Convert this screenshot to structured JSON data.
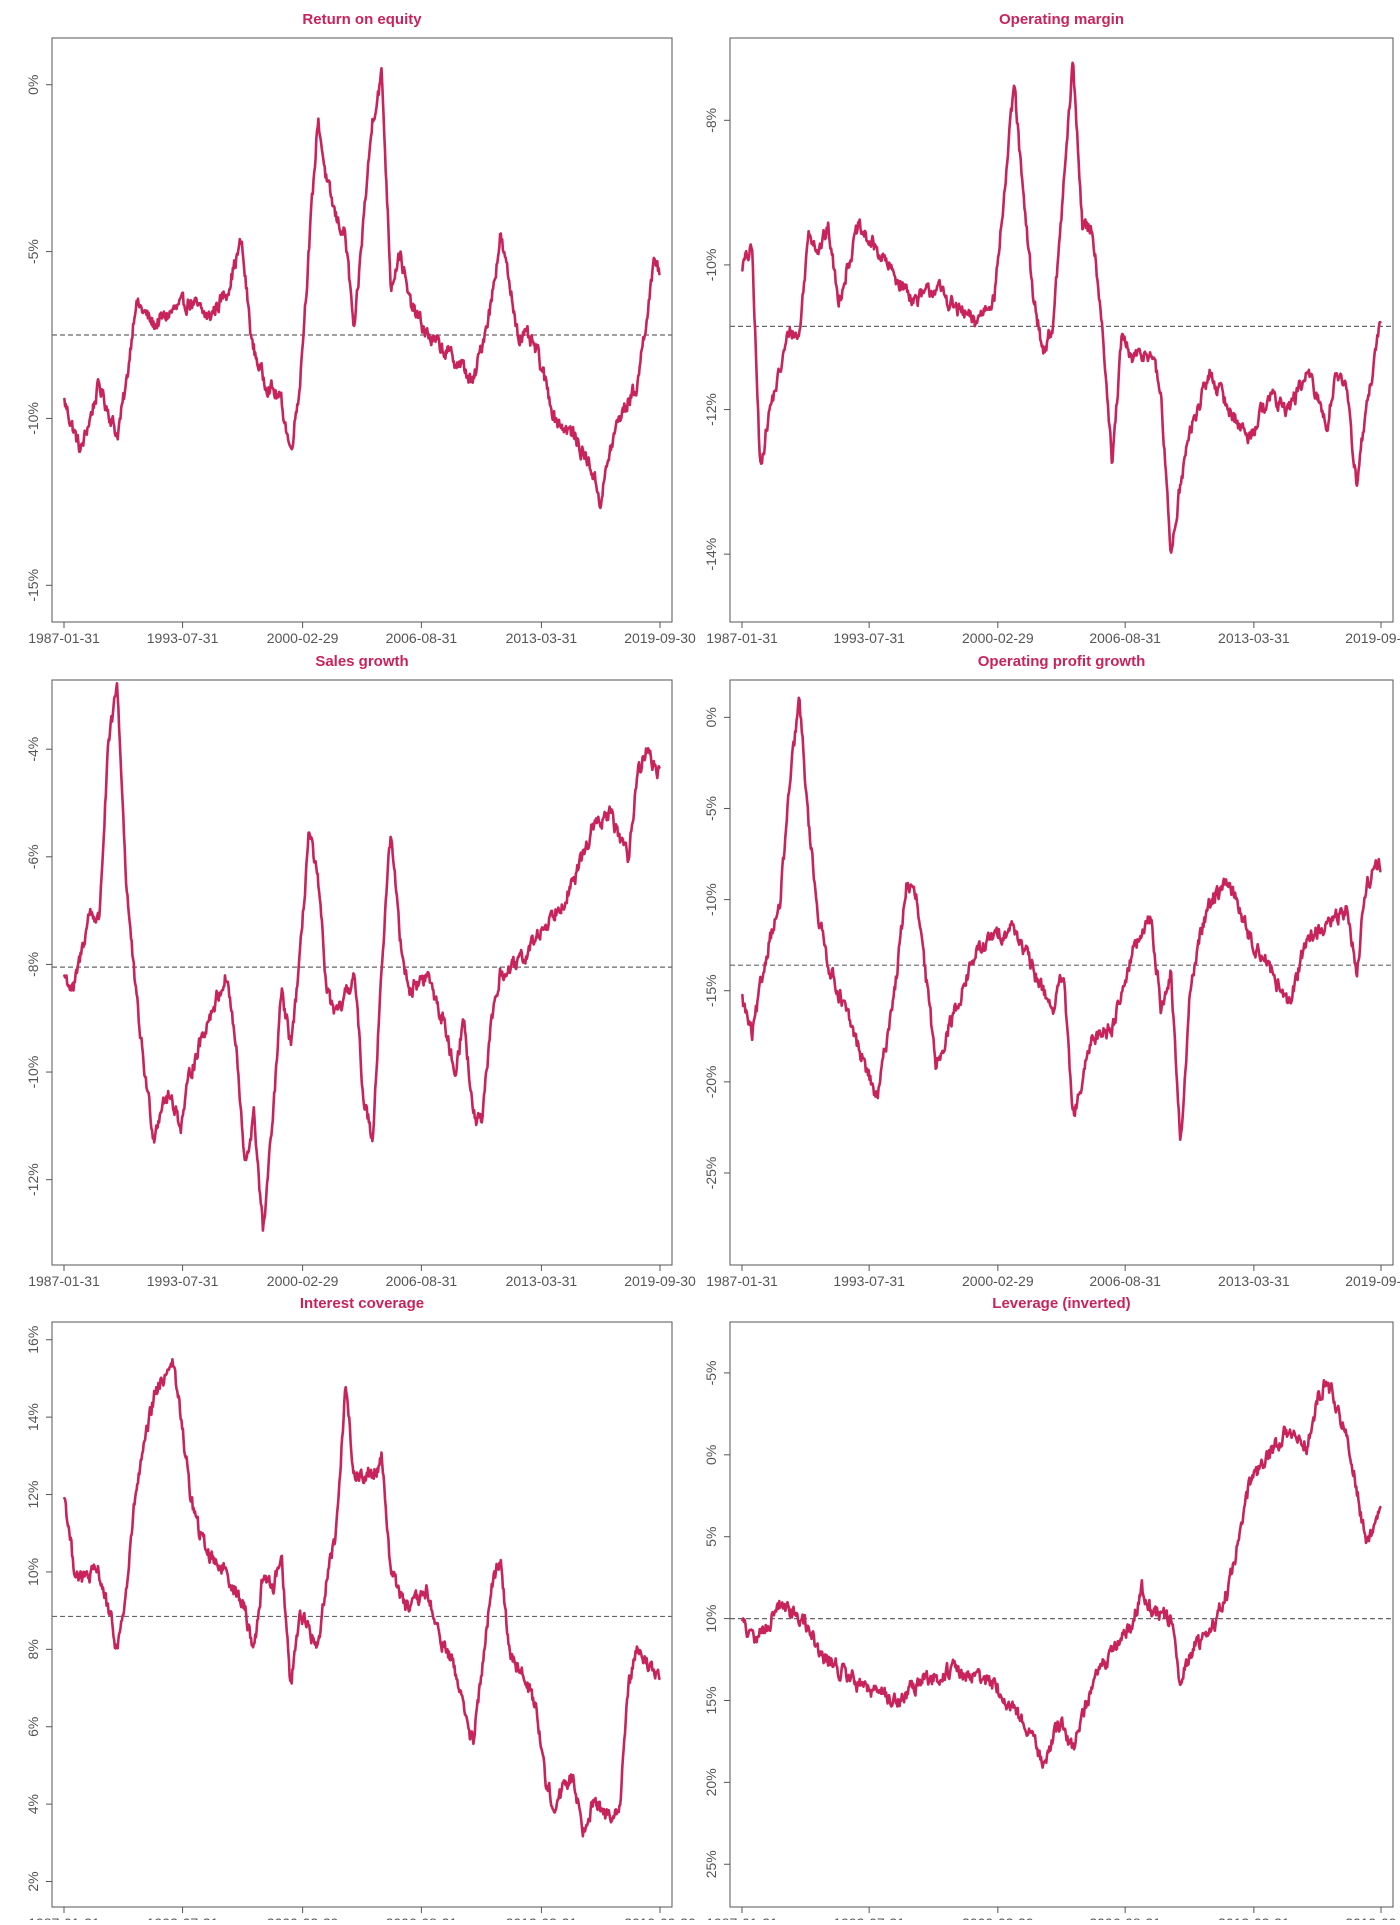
{
  "colors": {
    "series": "#c8235b",
    "title": "#c8235b",
    "axis": "#555555",
    "tick_label": "#555555",
    "mean_line": "#666666",
    "frame": "#555555"
  },
  "x_axis": {
    "tick_labels": [
      "1987-01-31",
      "1993-07-31",
      "2000-02-29",
      "2006-08-31",
      "2013-03-31",
      "2019-09-30"
    ],
    "tick_years": [
      1987.08,
      1993.58,
      2000.16,
      2006.67,
      2013.25,
      2019.75
    ],
    "range": [
      1987.08,
      2019.75
    ]
  },
  "chart_data": [
    {
      "type": "line",
      "title": "Return on equity",
      "xlabel": "",
      "ylabel": "",
      "ylim": [
        -15.8,
        1.1
      ],
      "yticks": [
        -15,
        -10,
        -5,
        0
      ],
      "ytick_labels": [
        "-15%",
        "-10%",
        "-5%",
        "0%"
      ],
      "mean": -7.5,
      "x": [
        1987.1,
        1988.0,
        1989.0,
        1990.0,
        1990.5,
        1991.0,
        1992.0,
        1993.0,
        1994.0,
        1995.0,
        1996.0,
        1996.8,
        1997.4,
        1998.0,
        1999.0,
        1999.5,
        2000.0,
        2000.5,
        2001.0,
        2001.5,
        2002.0,
        2002.5,
        2003.0,
        2003.5,
        2004.0,
        2004.5,
        2005.0,
        2005.5,
        2006.0,
        2007.0,
        2008.0,
        2009.0,
        2009.5,
        2010.5,
        2011.0,
        2011.5,
        2012.0,
        2012.5,
        2013.0,
        2014.0,
        2015.0,
        2016.0,
        2016.5,
        2017.0,
        2017.5,
        2018.0,
        2018.5,
        2019.0,
        2019.5,
        2019.75
      ],
      "values": [
        -9.5,
        -11.0,
        -9.0,
        -10.5,
        -9.0,
        -6.5,
        -7.2,
        -6.8,
        -6.5,
        -7.0,
        -6.2,
        -4.7,
        -7.8,
        -8.8,
        -9.5,
        -11.0,
        -9.0,
        -5.0,
        -1.0,
        -3.0,
        -4.0,
        -4.5,
        -7.5,
        -4.0,
        -1.0,
        0.3,
        -6.0,
        -5.0,
        -6.5,
        -7.5,
        -8.0,
        -8.5,
        -9.0,
        -6.5,
        -4.5,
        -6.0,
        -7.5,
        -7.6,
        -8.0,
        -10.0,
        -10.5,
        -11.5,
        -12.5,
        -11.0,
        -10.0,
        -9.5,
        -9.0,
        -7.0,
        -5.2,
        -5.6
      ]
    },
    {
      "type": "line",
      "title": "Operating margin",
      "xlabel": "",
      "ylabel": "",
      "ylim": [
        -14.8,
        -7.0
      ],
      "yticks": [
        -14,
        -12,
        -10,
        -8
      ],
      "ytick_labels": [
        "-14%",
        "-12%",
        "-10%",
        "-8%"
      ],
      "mean": -10.85,
      "x": [
        1987.1,
        1987.6,
        1988.0,
        1988.5,
        1989.0,
        1989.5,
        1990.0,
        1990.5,
        1991.0,
        1991.5,
        1992.0,
        1993.0,
        1994.0,
        1995.0,
        1996.0,
        1997.0,
        1998.0,
        1999.0,
        2000.0,
        2000.5,
        2001.0,
        2001.5,
        2002.0,
        2002.5,
        2003.0,
        2003.5,
        2004.0,
        2004.5,
        2005.0,
        2005.5,
        2006.0,
        2006.5,
        2007.0,
        2008.0,
        2008.5,
        2009.0,
        2009.5,
        2010.0,
        2011.0,
        2012.0,
        2013.0,
        2014.0,
        2015.0,
        2016.0,
        2017.0,
        2017.5,
        2018.0,
        2018.5,
        2019.0,
        2019.75
      ],
      "values": [
        -10.0,
        -9.8,
        -12.8,
        -12.0,
        -11.5,
        -10.9,
        -11.0,
        -9.5,
        -9.8,
        -9.5,
        -10.5,
        -9.5,
        -9.8,
        -10.2,
        -10.5,
        -10.3,
        -10.6,
        -10.8,
        -10.4,
        -9.0,
        -7.5,
        -9.2,
        -10.5,
        -11.2,
        -10.8,
        -9.0,
        -7.2,
        -9.5,
        -9.5,
        -10.8,
        -12.8,
        -11.0,
        -11.3,
        -11.2,
        -11.8,
        -14.0,
        -13.0,
        -12.3,
        -11.5,
        -12.0,
        -12.4,
        -11.8,
        -12.0,
        -11.5,
        -12.2,
        -11.4,
        -11.8,
        -13.0,
        -12.0,
        -10.8
      ]
    },
    {
      "type": "line",
      "title": "Sales growth",
      "xlabel": "",
      "ylabel": "",
      "ylim": [
        -13.4,
        -2.9
      ],
      "yticks": [
        -12,
        -10,
        -8,
        -6,
        -4
      ],
      "ytick_labels": [
        "-12%",
        "-10%",
        "-8%",
        "-6%",
        "-4%"
      ],
      "mean": -8.05,
      "x": [
        1987.1,
        1987.6,
        1988.5,
        1989.0,
        1989.5,
        1990.0,
        1990.5,
        1991.0,
        1991.5,
        1992.0,
        1992.5,
        1993.0,
        1993.5,
        1994.0,
        1995.0,
        1996.0,
        1996.5,
        1997.0,
        1997.5,
        1998.0,
        1998.5,
        1999.0,
        1999.5,
        2000.0,
        2000.5,
        2001.0,
        2001.5,
        2002.0,
        2003.0,
        2003.5,
        2004.0,
        2004.5,
        2005.0,
        2005.5,
        2006.0,
        2007.0,
        2008.0,
        2008.5,
        2009.0,
        2009.5,
        2010.0,
        2010.5,
        2011.0,
        2012.0,
        2013.0,
        2014.0,
        2015.0,
        2016.0,
        2017.0,
        2018.0,
        2018.5,
        2019.0,
        2019.75
      ],
      "values": [
        -8.2,
        -8.5,
        -7.0,
        -7.2,
        -4.0,
        -2.8,
        -6.5,
        -8.5,
        -10.0,
        -11.2,
        -10.5,
        -10.5,
        -11.0,
        -10.0,
        -9.0,
        -8.2,
        -9.5,
        -11.8,
        -10.8,
        -13.0,
        -11.0,
        -8.5,
        -9.5,
        -8.0,
        -5.5,
        -6.5,
        -8.5,
        -9.0,
        -8.2,
        -10.5,
        -11.2,
        -8.0,
        -5.5,
        -7.5,
        -8.5,
        -8.2,
        -9.2,
        -10.0,
        -9.0,
        -10.8,
        -11.0,
        -9.0,
        -8.2,
        -8.0,
        -7.5,
        -7.0,
        -6.5,
        -5.5,
        -5.2,
        -6.0,
        -4.5,
        -4.0,
        -4.5
      ]
    },
    {
      "type": "line",
      "title": "Operating profit growth",
      "xlabel": "",
      "ylabel": "",
      "ylim": [
        -29.5,
        1.5
      ],
      "yticks": [
        -25,
        -20,
        -15,
        -10,
        -5,
        0
      ],
      "ytick_labels": [
        "-25%",
        "-20%",
        "-15%",
        "-10%",
        "-5%",
        "0%"
      ],
      "mean": -13.6,
      "x": [
        1987.1,
        1987.6,
        1988.5,
        1989.0,
        1989.5,
        1990.0,
        1990.5,
        1991.0,
        1991.5,
        1992.0,
        1993.0,
        1993.5,
        1994.0,
        1995.0,
        1995.5,
        1996.0,
        1997.0,
        1998.0,
        1999.0,
        2000.0,
        2001.0,
        2002.0,
        2003.0,
        2003.5,
        2004.0,
        2004.5,
        2005.0,
        2006.0,
        2007.0,
        2008.0,
        2008.5,
        2009.0,
        2009.5,
        2010.0,
        2010.5,
        2011.0,
        2012.0,
        2013.0,
        2014.0,
        2015.0,
        2016.0,
        2017.0,
        2018.0,
        2018.5,
        2019.0,
        2019.75
      ],
      "values": [
        -15.5,
        -17.5,
        -12.0,
        -10.5,
        -4.0,
        1.0,
        -6.0,
        -11.0,
        -13.5,
        -15.0,
        -18.0,
        -19.5,
        -21.0,
        -14.0,
        -9.0,
        -10.0,
        -19.0,
        -16.0,
        -13.0,
        -12.0,
        -11.5,
        -14.0,
        -16.0,
        -14.0,
        -22.0,
        -20.0,
        -17.5,
        -17.0,
        -13.0,
        -11.0,
        -16.0,
        -14.0,
        -23.5,
        -15.0,
        -12.0,
        -10.0,
        -9.0,
        -12.0,
        -13.5,
        -16.0,
        -12.0,
        -11.5,
        -10.5,
        -14.0,
        -9.0,
        -8.0
      ]
    },
    {
      "type": "line",
      "title": "Interest coverage",
      "xlabel": "",
      "ylabel": "",
      "ylim": [
        1.6,
        16.2
      ],
      "yticks": [
        2,
        4,
        6,
        8,
        10,
        12,
        14,
        16
      ],
      "ytick_labels": [
        "2%",
        "4%",
        "6%",
        "8%",
        "10%",
        "12%",
        "14%",
        "16%"
      ],
      "mean": 8.85,
      "x": [
        1987.1,
        1987.6,
        1988.0,
        1989.0,
        1990.0,
        1990.5,
        1991.0,
        1992.0,
        1993.0,
        1993.5,
        1994.0,
        1994.5,
        1995.0,
        1996.0,
        1997.0,
        1997.5,
        1998.0,
        1998.5,
        1999.0,
        1999.5,
        2000.0,
        2000.5,
        2001.0,
        2001.5,
        2002.0,
        2002.5,
        2003.0,
        2004.0,
        2004.5,
        2005.0,
        2006.0,
        2007.0,
        2007.5,
        2008.0,
        2008.5,
        2009.0,
        2009.5,
        2010.0,
        2010.5,
        2011.0,
        2011.5,
        2012.0,
        2013.0,
        2013.5,
        2014.0,
        2015.0,
        2015.5,
        2016.0,
        2017.0,
        2017.5,
        2018.0,
        2018.5,
        2019.0,
        2019.75
      ],
      "values": [
        12.0,
        10.2,
        9.8,
        10.0,
        8.0,
        9.5,
        12.0,
        14.5,
        15.5,
        14.0,
        12.0,
        11.0,
        10.5,
        10.0,
        9.0,
        8.0,
        10.0,
        9.5,
        10.5,
        7.0,
        9.0,
        8.5,
        8.0,
        10.0,
        11.0,
        14.8,
        12.5,
        12.5,
        13.0,
        10.0,
        9.0,
        9.5,
        8.5,
        8.0,
        7.5,
        6.5,
        5.5,
        7.5,
        9.5,
        10.4,
        8.0,
        7.5,
        6.5,
        4.5,
        4.0,
        4.8,
        3.3,
        4.0,
        3.8,
        3.6,
        7.0,
        8.0,
        7.6,
        7.3
      ]
    },
    {
      "type": "line",
      "title": "Leverage (inverted)",
      "xlabel": "",
      "ylabel": "",
      "ylim": [
        27.0,
        -7.5
      ],
      "yticks": [
        25,
        20,
        15,
        10,
        5,
        0,
        -5
      ],
      "ytick_labels": [
        "25%",
        "20%",
        "15%",
        "10%",
        "5%",
        "0%",
        "-5%"
      ],
      "mean": 10.0,
      "x": [
        1987.1,
        1987.6,
        1988.0,
        1989.0,
        1990.0,
        1990.5,
        1991.0,
        1992.0,
        1993.0,
        1994.0,
        1995.0,
        1996.0,
        1997.0,
        1998.0,
        1999.0,
        2000.0,
        2001.0,
        2002.0,
        2002.5,
        2003.0,
        2003.5,
        2004.0,
        2004.5,
        2005.0,
        2006.0,
        2007.0,
        2007.5,
        2008.0,
        2009.0,
        2009.5,
        2010.0,
        2011.0,
        2012.0,
        2013.0,
        2014.0,
        2015.0,
        2016.0,
        2016.5,
        2017.0,
        2018.0,
        2018.5,
        2019.0,
        2019.75
      ],
      "values": [
        10.0,
        11.5,
        11.0,
        9.0,
        10.0,
        10.5,
        12.0,
        13.0,
        14.0,
        14.5,
        15.0,
        14.0,
        13.5,
        13.0,
        13.5,
        14.0,
        15.5,
        17.5,
        19.0,
        17.0,
        16.5,
        18.0,
        16.0,
        14.0,
        12.0,
        10.5,
        8.0,
        9.5,
        10.0,
        14.0,
        12.0,
        11.0,
        8.0,
        2.0,
        0.0,
        -1.5,
        -0.5,
        -3.5,
        -4.5,
        -1.0,
        2.0,
        5.5,
        3.0
      ]
    }
  ]
}
